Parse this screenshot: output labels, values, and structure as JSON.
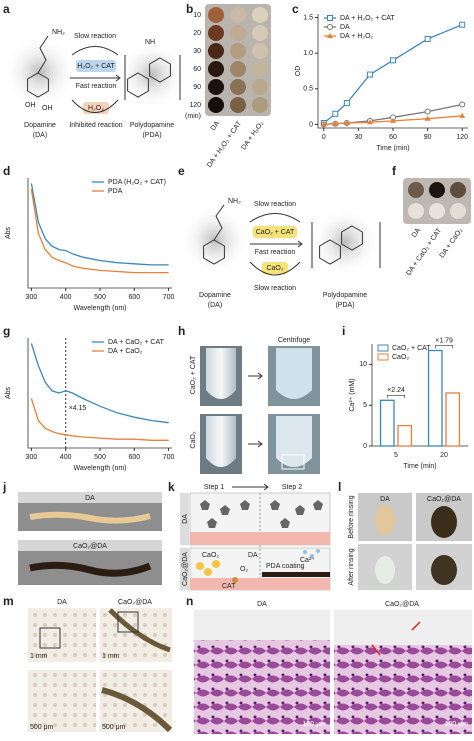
{
  "panel_labels": [
    "a",
    "b",
    "c",
    "d",
    "e",
    "f",
    "g",
    "h",
    "i",
    "j",
    "k",
    "l",
    "m",
    "n"
  ],
  "a": {
    "slow": "Slow reaction",
    "catalyst": "H₂O₂ + CAT",
    "fast": "Fast reaction",
    "oxidant": "H₂O₂",
    "inhibited": "Inhibited reaction",
    "reactant": [
      "Dopamine",
      "(DA)"
    ],
    "product": [
      "Polydopamine",
      "(PDA)"
    ]
  },
  "b": {
    "times": [
      "10",
      "20",
      "30",
      "60",
      "90",
      "120"
    ],
    "unit": "(min)",
    "samples": [
      "DA",
      "DA + H₂O₂ + CAT",
      "DA + H₂O₂"
    ]
  },
  "e": {
    "slow": "Slow reaction",
    "catalyst": "CaO₂ + CAT",
    "fast": "Fast reaction",
    "oxidant": "CaO₂",
    "slow2": "Slow reaction",
    "reactant": [
      "Dopamine",
      "(DA)"
    ],
    "product": [
      "Polydopamine",
      "(PDA)"
    ]
  },
  "f": {
    "samples": [
      "DA",
      "DA + CaO₂ + CAT",
      "DA + CaO₂"
    ]
  },
  "h": {
    "rows": [
      "CaO₂ + CAT",
      "CaO₂"
    ],
    "step": "Centrifuge"
  },
  "j": {
    "samples": [
      "DA",
      "CaO₂@DA"
    ]
  },
  "k": {
    "steps": [
      "Step 1",
      "Step 2"
    ],
    "rows": [
      "DA",
      "CaO₂@DA"
    ],
    "labels": {
      "cao2": "CaO₂",
      "da": "DA",
      "o2": "O₂",
      "cat": "CAT",
      "coating": "PDA coating",
      "ca": "Ca²⁺"
    }
  },
  "l": {
    "samples": [
      "DA",
      "CaO₂@DA"
    ],
    "stages": [
      "Before rinsing",
      "After rinsing"
    ]
  },
  "m": {
    "samples": [
      "DA",
      "CaO₂@DA"
    ],
    "scales": [
      "1 mm",
      "1 mm",
      "500 μm",
      "500 μm"
    ]
  },
  "n": {
    "samples": [
      "DA",
      "CaO₂@DA"
    ],
    "scales": [
      "100 μm",
      "100 μm"
    ]
  },
  "chart_data": [
    {
      "type": "line",
      "x_label": "Time (min)",
      "y_label": "OD",
      "x": [
        0,
        10,
        20,
        40,
        60,
        90,
        120
      ],
      "xlim": [
        -5,
        125
      ],
      "xticks": [
        0,
        30,
        60,
        90,
        120
      ],
      "ylim": [
        -0.05,
        1.55
      ],
      "yticks": [
        0,
        0.5,
        {
          "value": 1,
          "label": "1.0"
        },
        1.5
      ],
      "legend": "top-left",
      "series": [
        {
          "name": "DA + H₂O₂ + CAT",
          "color": "#3d87b8",
          "marker": "square",
          "values": [
            0.02,
            0.15,
            0.3,
            0.7,
            0.9,
            1.2,
            1.4
          ]
        },
        {
          "name": "DA",
          "color": "#777777",
          "marker": "circle",
          "values": [
            0,
            0.01,
            0.02,
            0.05,
            0.1,
            0.18,
            0.28
          ]
        },
        {
          "name": "DA + H₂O₂",
          "color": "#e8803a",
          "marker": "triangle",
          "values": [
            0,
            0.01,
            0.02,
            0.03,
            0.05,
            0.08,
            0.12
          ]
        }
      ]
    },
    {
      "type": "line",
      "x_label": "Wavelength (nm)",
      "y_label": "Abs",
      "x": [
        300,
        320,
        340,
        360,
        380,
        400,
        420,
        450,
        500,
        550,
        600,
        650,
        700
      ],
      "xlim": [
        290,
        710
      ],
      "xticks": [
        300,
        400,
        500,
        600,
        700
      ],
      "ylim": [
        0,
        1
      ],
      "legend": "top-right",
      "series": [
        {
          "name": "PDA (H₂O₂ + CAT)",
          "color": "#3d87b8",
          "values": [
            0.95,
            0.6,
            0.45,
            0.38,
            0.35,
            0.34,
            0.31,
            0.28,
            0.25,
            0.23,
            0.22,
            0.21,
            0.21
          ]
        },
        {
          "name": "PDA",
          "color": "#e8803a",
          "values": [
            0.9,
            0.5,
            0.35,
            0.28,
            0.25,
            0.23,
            0.2,
            0.18,
            0.16,
            0.15,
            0.14,
            0.14,
            0.14
          ]
        }
      ]
    },
    {
      "type": "line",
      "x_label": "Wavelength (nm)",
      "y_label": "Abs",
      "x": [
        300,
        320,
        340,
        360,
        380,
        400,
        420,
        450,
        500,
        550,
        600,
        650,
        700
      ],
      "xlim": [
        290,
        710
      ],
      "xticks": [
        300,
        400,
        500,
        600,
        700
      ],
      "ylim": [
        0,
        1
      ],
      "legend": "top-right",
      "vline": 400,
      "annotation": "×4.15",
      "series": [
        {
          "name": "DA + CaO₂ + CAT",
          "color": "#3d87b8",
          "values": [
            0.95,
            0.75,
            0.6,
            0.52,
            0.5,
            0.52,
            0.5,
            0.45,
            0.38,
            0.32,
            0.28,
            0.25,
            0.23
          ]
        },
        {
          "name": "DA + CaO₂",
          "color": "#e8803a",
          "values": [
            0.45,
            0.25,
            0.18,
            0.15,
            0.13,
            0.12,
            0.11,
            0.1,
            0.09,
            0.08,
            0.08,
            0.07,
            0.07
          ]
        }
      ]
    },
    {
      "type": "bar",
      "x_label": "Time (min)",
      "y_label": "Ca²⁺ (mM)",
      "categories": [
        "5",
        "20"
      ],
      "ylim": [
        0,
        12.5
      ],
      "yticks": [
        0,
        5,
        10
      ],
      "legend": "top-left",
      "annotations": [
        "×2.24",
        "×1.79"
      ],
      "series": [
        {
          "name": "CaO₂ + CAT",
          "color": "#3d87b8",
          "values": [
            5.6,
            11.7
          ]
        },
        {
          "name": "CaO₂",
          "color": "#e8803a",
          "values": [
            2.5,
            6.5
          ]
        }
      ]
    }
  ]
}
